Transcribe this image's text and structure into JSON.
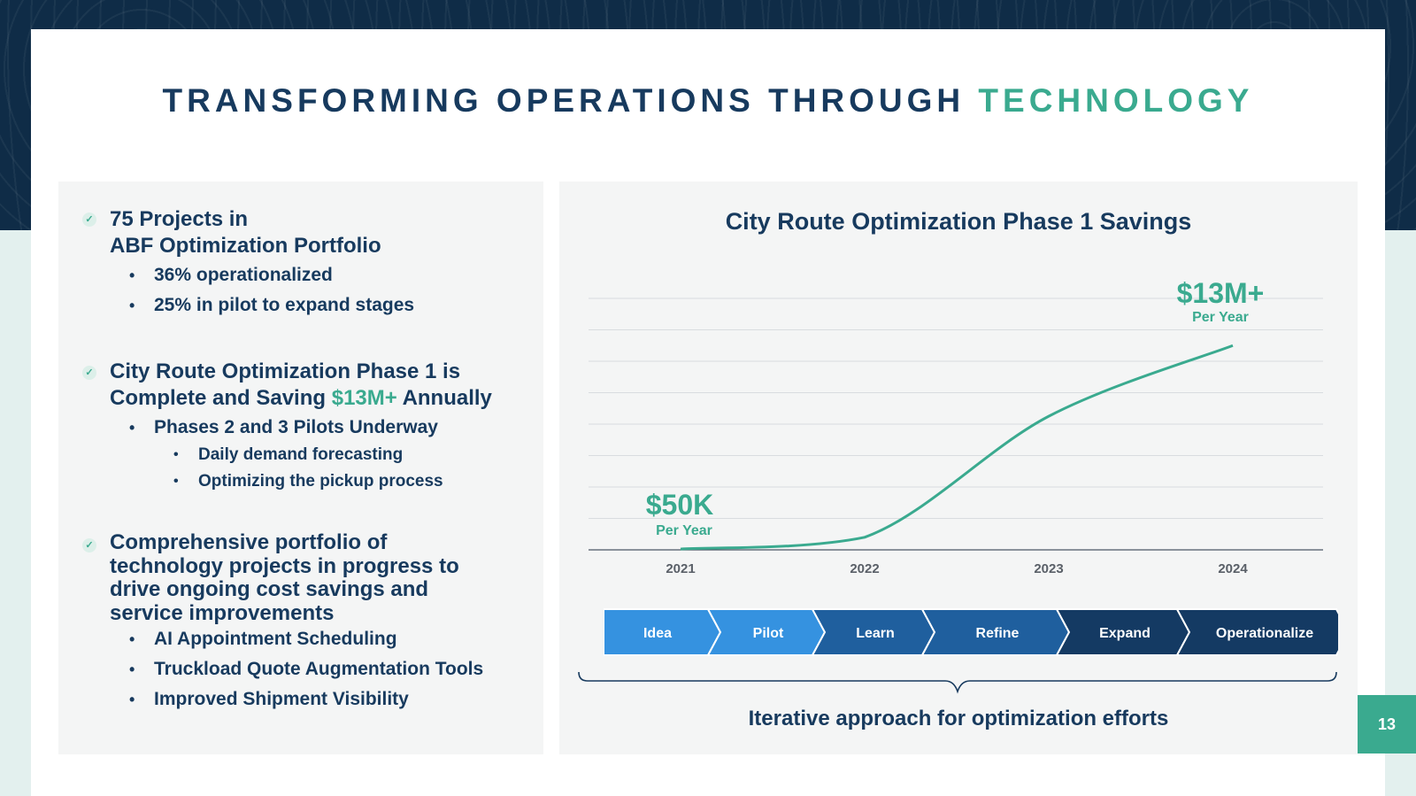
{
  "colors": {
    "navy": "#173a5e",
    "teal": "#3aaa8f",
    "step_light": "#3592e0",
    "step_mid": "#1f5f9e",
    "step_dark": "#143a63"
  },
  "title": {
    "main": "TRANSFORMING OPERATIONS THROUGH",
    "accent": "TECHNOLOGY"
  },
  "left": {
    "sections": [
      {
        "head_lines": [
          "75 Projects in",
          "ABF Optimization Portfolio"
        ],
        "bullets": [
          "36% operationalized",
          "25% in pilot to expand stages"
        ]
      },
      {
        "head_line1": "City Route Optimization Phase 1 is",
        "head_line2_pre": "Complete and Saving",
        "head_line2_hl": "$13M+",
        "head_line2_post": "Annually",
        "bullets": [
          "Phases 2 and 3 Pilots Underway"
        ],
        "sub_bullets": [
          "Daily demand forecasting",
          "Optimizing the pickup process"
        ]
      },
      {
        "head_lines": [
          "Comprehensive portfolio of",
          "technology projects in progress to",
          "drive ongoing cost savings and",
          "service improvements"
        ],
        "bullets": [
          "AI Appointment Scheduling",
          "Truckload Quote Augmentation Tools",
          "Improved Shipment Visibility"
        ]
      }
    ]
  },
  "chart_data": {
    "type": "line",
    "title": "City Route Optimization Phase 1 Savings",
    "categories": [
      "2021",
      "2022",
      "2023",
      "2024"
    ],
    "annotations": [
      {
        "label": "$50K",
        "sub": "Per Year",
        "year": "2021"
      },
      {
        "label": "$13M+",
        "sub": "Per Year",
        "year": "2024"
      }
    ],
    "series": [
      {
        "name": "Savings",
        "values_musd": [
          0.05,
          0.8,
          8.5,
          13
        ]
      }
    ],
    "ylim": [
      0,
      16
    ],
    "grid": true
  },
  "process": {
    "steps": [
      "Idea",
      "Pilot",
      "Learn",
      "Refine",
      "Expand",
      "Operationalize"
    ]
  },
  "caption": "Iterative approach for optimization efforts",
  "page_number": "13"
}
